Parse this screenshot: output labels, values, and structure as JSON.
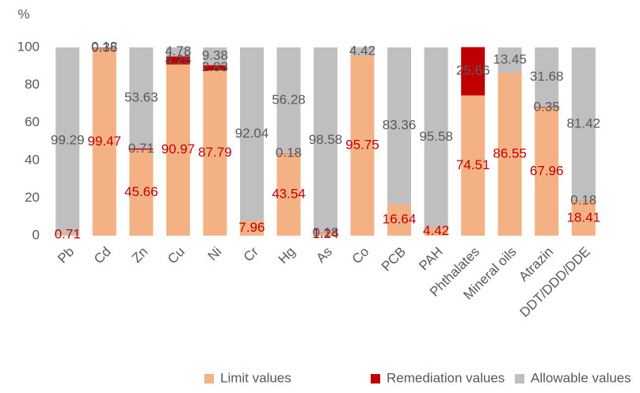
{
  "chart_data": {
    "type": "stacked_bar",
    "y_label": "%",
    "categories": [
      "Pb",
      "Cd",
      "Zn",
      "Cu",
      "Ni",
      "Cr",
      "Hg",
      "As",
      "Co",
      "PCB",
      "PAH",
      "Phthalates",
      "Mineral oils",
      "Atrazin",
      "DDT/DDD/DDE"
    ],
    "series": [
      {
        "name": "Limit values",
        "color": "#f4b183",
        "label_color": "#c00000",
        "values": [
          0.71,
          99.47,
          45.66,
          90.97,
          87.79,
          7.96,
          43.54,
          1.24,
          95.75,
          16.64,
          4.42,
          74.51,
          86.55,
          67.96,
          18.41
        ]
      },
      {
        "name": "Remediation values",
        "color": "#c00000",
        "label_color": "#595959",
        "values": [
          null,
          0.35,
          0.71,
          4.25,
          2.83,
          null,
          0.18,
          0.18,
          null,
          null,
          null,
          25.66,
          null,
          0.35,
          0.18
        ]
      },
      {
        "name": "Allowable values",
        "color": "#bfbfbf",
        "label_color": "#595959",
        "values": [
          99.29,
          0.18,
          53.63,
          4.78,
          9.38,
          92.04,
          56.28,
          98.58,
          4.42,
          83.36,
          95.58,
          null,
          13.45,
          31.68,
          81.42
        ]
      }
    ],
    "ylim": [
      0,
      100
    ],
    "yticks": [
      0,
      20,
      40,
      60,
      80,
      100
    ],
    "grid": false,
    "legend": "bottom"
  }
}
